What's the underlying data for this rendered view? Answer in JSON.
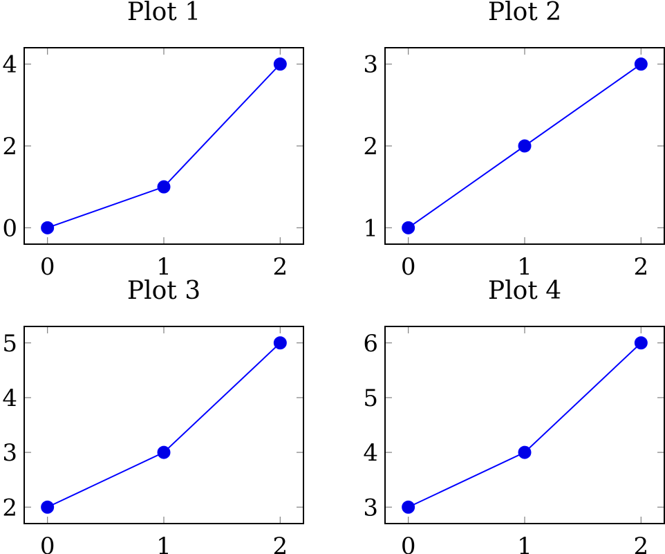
{
  "colors": {
    "line": "#0000ff",
    "marker": "#0000e6",
    "axis": "#000000",
    "tick": "#7f7f7f",
    "background": "#ffffff"
  },
  "chart_data": [
    {
      "type": "line",
      "title": "Plot 1",
      "x": [
        0,
        1,
        2
      ],
      "series": [
        {
          "values": [
            0,
            1,
            4
          ]
        }
      ],
      "xlim": [
        -0.2,
        2.2
      ],
      "ylim": [
        -0.4,
        4.4
      ],
      "xticks": [
        0,
        1,
        2
      ],
      "yticks": [
        0,
        2,
        4
      ],
      "grid": false,
      "marker": "filled-circle"
    },
    {
      "type": "line",
      "title": "Plot 2",
      "x": [
        0,
        1,
        2
      ],
      "series": [
        {
          "values": [
            1,
            2,
            3
          ]
        }
      ],
      "xlim": [
        -0.2,
        2.2
      ],
      "ylim": [
        0.8,
        3.2
      ],
      "xticks": [
        0,
        1,
        2
      ],
      "yticks": [
        1,
        2,
        3
      ],
      "grid": false,
      "marker": "filled-circle"
    },
    {
      "type": "line",
      "title": "Plot 3",
      "x": [
        0,
        1,
        2
      ],
      "series": [
        {
          "values": [
            2,
            3,
            5
          ]
        }
      ],
      "xlim": [
        -0.2,
        2.2
      ],
      "ylim": [
        1.7,
        5.3
      ],
      "xticks": [
        0,
        1,
        2
      ],
      "yticks": [
        2,
        3,
        4,
        5
      ],
      "grid": false,
      "marker": "filled-circle"
    },
    {
      "type": "line",
      "title": "Plot 4",
      "x": [
        0,
        1,
        2
      ],
      "series": [
        {
          "values": [
            3,
            4,
            6
          ]
        }
      ],
      "xlim": [
        -0.2,
        2.2
      ],
      "ylim": [
        2.7,
        6.3
      ],
      "xticks": [
        0,
        1,
        2
      ],
      "yticks": [
        3,
        4,
        5,
        6
      ],
      "grid": false,
      "marker": "filled-circle"
    }
  ]
}
